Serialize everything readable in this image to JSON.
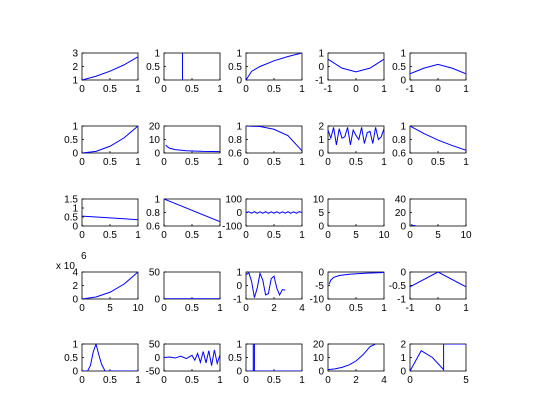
{
  "figure": {
    "background": "#ffffff",
    "line_color": "#0000ff"
  },
  "chart_data": [
    {
      "type": "line",
      "xlim": [
        0,
        1
      ],
      "ylim": [
        1,
        3
      ],
      "xticks": [
        "0",
        "0.5",
        "1"
      ],
      "yticks": [
        "1",
        "2",
        "3"
      ],
      "x": [
        0,
        0.25,
        0.5,
        0.75,
        1
      ],
      "y": [
        1.0,
        1.28,
        1.65,
        2.12,
        2.72
      ]
    },
    {
      "type": "line",
      "xlim": [
        0,
        1
      ],
      "ylim": [
        0,
        1
      ],
      "xticks": [
        "0",
        "0.5",
        "1"
      ],
      "yticks": [
        "0",
        "0.5",
        "1"
      ],
      "x": [
        0.33,
        0.33
      ],
      "y": [
        0,
        1
      ]
    },
    {
      "type": "line",
      "xlim": [
        0,
        1
      ],
      "ylim": [
        0,
        1
      ],
      "xticks": [
        "0",
        "0.5",
        "1"
      ],
      "yticks": [
        "0",
        "0.5",
        "1"
      ],
      "x": [
        0,
        0.1,
        0.25,
        0.5,
        0.75,
        1
      ],
      "y": [
        0,
        0.32,
        0.5,
        0.71,
        0.87,
        1
      ]
    },
    {
      "type": "line",
      "xlim": [
        -1,
        1
      ],
      "ylim": [
        -1,
        1
      ],
      "xticks": [
        "-1",
        "0",
        "1"
      ],
      "yticks": [
        "-1",
        "0",
        "1"
      ],
      "x": [
        -1,
        -0.5,
        0,
        0.5,
        1
      ],
      "y": [
        0.54,
        -0.12,
        -0.4,
        -0.12,
        0.54
      ]
    },
    {
      "type": "line",
      "xlim": [
        -1,
        1
      ],
      "ylim": [
        0,
        1
      ],
      "xticks": [
        "-1",
        "0",
        "1"
      ],
      "yticks": [
        "0",
        "0.5",
        "1"
      ],
      "x": [
        -1,
        -0.5,
        0,
        0.5,
        1
      ],
      "y": [
        0.23,
        0.44,
        0.58,
        0.44,
        0.23
      ]
    },
    {
      "type": "line",
      "xlim": [
        0,
        1
      ],
      "ylim": [
        0,
        1
      ],
      "xticks": [
        "0",
        "0.5",
        "1"
      ],
      "yticks": [
        "0",
        "0.5",
        "1"
      ],
      "x": [
        0,
        0.25,
        0.5,
        0.75,
        1
      ],
      "y": [
        0,
        0.06,
        0.25,
        0.56,
        1
      ]
    },
    {
      "type": "line",
      "xlim": [
        0,
        1
      ],
      "ylim": [
        0,
        20
      ],
      "xticks": [
        "0",
        "0.5",
        "1"
      ],
      "yticks": [
        "0",
        "10",
        "20"
      ],
      "x": [
        0.03,
        0.05,
        0.1,
        0.2,
        0.4,
        0.7,
        1
      ],
      "y": [
        6,
        5,
        3.5,
        2.5,
        1.7,
        1.2,
        1
      ]
    },
    {
      "type": "line",
      "xlim": [
        0,
        1
      ],
      "ylim": [
        0.5,
        1
      ],
      "xticks": [
        "0",
        "0.5",
        "1"
      ],
      "yticks": [
        "0.6",
        "0.8",
        "1"
      ],
      "x": [
        0,
        0.25,
        0.5,
        0.75,
        1
      ],
      "y": [
        1,
        0.99,
        0.94,
        0.82,
        0.54
      ]
    },
    {
      "type": "line",
      "xlim": [
        0,
        1
      ],
      "ylim": [
        0,
        2
      ],
      "xticks": [
        "0",
        "0.5",
        "1"
      ],
      "yticks": [
        "0",
        "1",
        "2"
      ],
      "x": [
        0,
        0.05,
        0.1,
        0.15,
        0.2,
        0.25,
        0.3,
        0.35,
        0.4,
        0.45,
        0.5,
        0.55,
        0.6,
        0.65,
        0.7,
        0.75,
        0.8,
        0.85,
        0.9,
        0.95,
        1
      ],
      "y": [
        1.7,
        1.1,
        1.9,
        0.6,
        1.8,
        1.1,
        1.2,
        1.9,
        0.6,
        1.7,
        1.3,
        1.0,
        1.9,
        0.7,
        1.5,
        1.6,
        0.7,
        1.9,
        1.0,
        1.2,
        1.8
      ]
    },
    {
      "type": "line",
      "xlim": [
        0,
        1
      ],
      "ylim": [
        0.5,
        1
      ],
      "xticks": [
        "0",
        "0.5",
        "1"
      ],
      "yticks": [
        "0.6",
        "0.8",
        "1"
      ],
      "x": [
        0,
        0.25,
        0.5,
        0.75,
        1
      ],
      "y": [
        1,
        0.86,
        0.74,
        0.64,
        0.55
      ]
    },
    {
      "type": "line",
      "xlim": [
        0,
        1
      ],
      "ylim": [
        0,
        1.5
      ],
      "xticks": [
        "0",
        "0.5",
        "1"
      ],
      "yticks": [
        "0",
        "0.5",
        "1",
        "1.5"
      ],
      "x": [
        0,
        0.5,
        1
      ],
      "y": [
        0.55,
        0.45,
        0.35
      ]
    },
    {
      "type": "line",
      "xlim": [
        0,
        1
      ],
      "ylim": [
        0.5,
        1
      ],
      "xticks": [
        "0",
        "0.5",
        "1"
      ],
      "yticks": [
        "0.6",
        "0.8",
        "1"
      ],
      "x": [
        0,
        1
      ],
      "y": [
        1,
        0.58
      ]
    },
    {
      "type": "line",
      "xlim": [
        0,
        1
      ],
      "ylim": [
        -100,
        100
      ],
      "xticks": [
        "0",
        "0.5",
        "1"
      ],
      "yticks": [
        "-100",
        "0",
        "100"
      ],
      "x": [
        0,
        0.05,
        0.1,
        0.15,
        0.2,
        0.25,
        0.3,
        0.35,
        0.4,
        0.45,
        0.5,
        0.55,
        0.6,
        0.65,
        0.7,
        0.75,
        0.8,
        0.85,
        0.9,
        0.95,
        1
      ],
      "y": [
        0,
        5,
        -5,
        6,
        -6,
        5,
        -5,
        6,
        -6,
        5,
        -5,
        6,
        -6,
        5,
        -5,
        6,
        -6,
        5,
        -5,
        6,
        0
      ]
    },
    {
      "type": "line",
      "xlim": [
        0,
        10
      ],
      "ylim": [
        0,
        10
      ],
      "xticks": [
        "0",
        "5",
        "10"
      ],
      "yticks": [
        "0",
        "5",
        "10"
      ],
      "x": [],
      "y": []
    },
    {
      "type": "line",
      "xlim": [
        0,
        10
      ],
      "ylim": [
        0,
        40
      ],
      "xticks": [
        "0",
        "5",
        "10"
      ],
      "yticks": [
        "0",
        "20",
        "40"
      ],
      "x": [
        0.2,
        0.5,
        1
      ],
      "y": [
        2,
        1,
        0.3
      ]
    },
    {
      "type": "line",
      "xlim": [
        0,
        10
      ],
      "ylim": [
        0,
        4000000
      ],
      "xticks": [
        "0",
        "5",
        "10"
      ],
      "yticks": [
        "0",
        "2",
        "4"
      ],
      "y_exponent_base": "x 10",
      "y_exponent": "6",
      "x": [
        0,
        2.5,
        5,
        7.5,
        10
      ],
      "y": [
        0,
        300000,
        1000000,
        2200000,
        4000000
      ]
    },
    {
      "type": "line",
      "xlim": [
        0,
        1
      ],
      "ylim": [
        0,
        50
      ],
      "xticks": [
        "0",
        "0.5",
        "1"
      ],
      "yticks": [
        "0",
        "50"
      ],
      "x": [
        0,
        1
      ],
      "y": [
        0.5,
        0.5
      ]
    },
    {
      "type": "line",
      "xlim": [
        0,
        4
      ],
      "ylim": [
        -1,
        1
      ],
      "xticks": [
        "0",
        "2",
        "4"
      ],
      "yticks": [
        "-1",
        "0",
        "1"
      ],
      "x": [
        0,
        0.2,
        0.4,
        0.6,
        0.8,
        1.0,
        1.2,
        1.4,
        1.6,
        1.8,
        2.0,
        2.2,
        2.4,
        2.6,
        2.8
      ],
      "y": [
        0.8,
        0.95,
        0.3,
        -0.9,
        -0.2,
        0.9,
        0.4,
        -0.7,
        -0.6,
        0.5,
        0.7,
        -0.2,
        -0.7,
        -0.3,
        -0.35
      ]
    },
    {
      "type": "line",
      "xlim": [
        0,
        1
      ],
      "ylim": [
        -10,
        0
      ],
      "xticks": [
        "0",
        "0.5",
        "1"
      ],
      "yticks": [
        "-10",
        "-5",
        "0"
      ],
      "x": [
        0.02,
        0.05,
        0.1,
        0.2,
        0.4,
        0.7,
        1
      ],
      "y": [
        -4.5,
        -3,
        -2,
        -1.3,
        -0.8,
        -0.4,
        -0.2
      ]
    },
    {
      "type": "line",
      "xlim": [
        -1,
        1
      ],
      "ylim": [
        -1,
        0
      ],
      "xticks": [
        "-1",
        "0",
        "1"
      ],
      "yticks": [
        "-1",
        "-0.5",
        "0"
      ],
      "x": [
        -1,
        0,
        1
      ],
      "y": [
        -0.55,
        0,
        -0.55
      ]
    },
    {
      "type": "line",
      "xlim": [
        0,
        1
      ],
      "ylim": [
        0,
        1
      ],
      "xticks": [
        "0",
        "0.5",
        "1"
      ],
      "yticks": [
        "0",
        "0.5",
        "1"
      ],
      "x": [
        0,
        0.1,
        0.15,
        0.2,
        0.25,
        0.3,
        0.35,
        0.4,
        0.4,
        0.45,
        1
      ],
      "y": [
        0,
        0,
        0.2,
        0.7,
        1.0,
        0.6,
        0.25,
        0.05,
        0,
        0,
        0
      ]
    },
    {
      "type": "line",
      "xlim": [
        0,
        1
      ],
      "ylim": [
        -50,
        50
      ],
      "xticks": [
        "0",
        "0.5",
        "1"
      ],
      "yticks": [
        "-50",
        "0",
        "50"
      ],
      "x": [
        0,
        0.1,
        0.2,
        0.3,
        0.4,
        0.5,
        0.55,
        0.6,
        0.65,
        0.7,
        0.75,
        0.8,
        0.85,
        0.9,
        0.95,
        1
      ],
      "y": [
        0,
        2,
        -2,
        5,
        -4,
        8,
        -10,
        15,
        -18,
        22,
        -20,
        25,
        -30,
        28,
        -22,
        10
      ]
    },
    {
      "type": "line",
      "xlim": [
        0,
        1
      ],
      "ylim": [
        0,
        1
      ],
      "xticks": [
        "0",
        "0.5",
        "1"
      ],
      "yticks": [
        "0",
        "0.5",
        "1"
      ],
      "x": [
        0,
        0.13,
        0.13,
        0.15,
        0.15,
        1
      ],
      "y": [
        0,
        0,
        1,
        1,
        0,
        0
      ]
    },
    {
      "type": "line",
      "xlim": [
        0,
        4
      ],
      "ylim": [
        0,
        20
      ],
      "xticks": [
        "0",
        "2",
        "4"
      ],
      "yticks": [
        "0",
        "10",
        "20"
      ],
      "x": [
        0,
        0.5,
        1,
        1.5,
        2,
        2.5,
        3,
        3.4
      ],
      "y": [
        1,
        1.6,
        2.7,
        4.5,
        7.4,
        12,
        18,
        20
      ]
    },
    {
      "type": "line",
      "xlim": [
        0,
        5
      ],
      "ylim": [
        0,
        2
      ],
      "xticks": [
        "0",
        "5"
      ],
      "yticks": [
        "0",
        "1",
        "2"
      ],
      "x": [
        0,
        1,
        2,
        3,
        3,
        5
      ],
      "y": [
        0,
        1.5,
        1.0,
        0.1,
        2,
        2
      ]
    }
  ]
}
